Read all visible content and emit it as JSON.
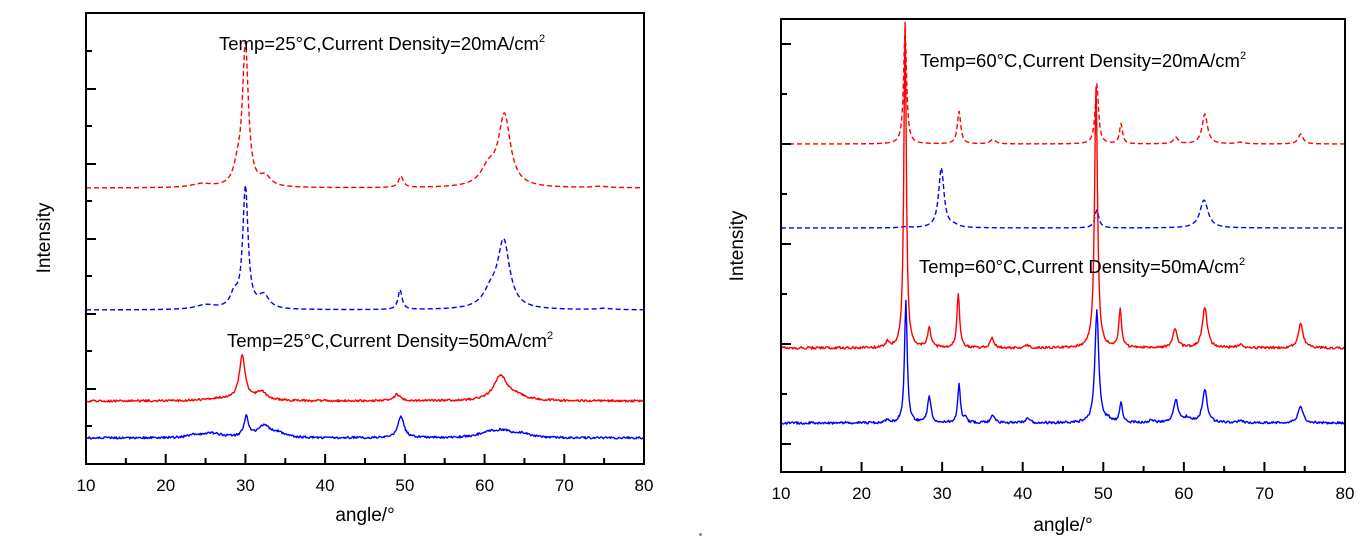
{
  "chart_data": [
    {
      "type": "line",
      "panel": "left",
      "xlabel": "angle/°",
      "ylabel": "Intensity",
      "xlim": [
        10,
        80
      ],
      "xticks": [
        "10",
        "20",
        "30",
        "40",
        "50",
        "60",
        "70",
        "80"
      ],
      "annotations": [
        {
          "text": "Temp=25°C,Current Density=20mA/cm",
          "sup": "2"
        },
        {
          "text": "Temp=25°C,Current Density=50mA/cm",
          "sup": "2"
        }
      ],
      "yticks_major": 5,
      "series": [
        {
          "name": "25°C 20mA/cm2 (red dashed)",
          "color": "#ff0000",
          "dash": true,
          "baseline": 0.61,
          "peaks": [
            [
              30.0,
              3.2,
              0.45
            ],
            [
              62.5,
              1.6,
              0.9
            ],
            [
              49.5,
              0.26,
              0.35
            ],
            [
              32.5,
              0.22,
              0.8
            ],
            [
              29.0,
              0.35,
              0.6
            ],
            [
              24.5,
              0.08,
              1.5
            ],
            [
              60.5,
              0.4,
              1.2
            ],
            [
              74.5,
              0.03,
              1.0
            ]
          ]
        },
        {
          "name": "25°C 20mA/cm2 (blue dashed)",
          "color": "#0000ff",
          "dash": true,
          "baseline": 0.0,
          "peaks": [
            [
              30.0,
              2.75,
              0.4
            ],
            [
              62.4,
              1.5,
              0.9
            ],
            [
              49.4,
              0.45,
              0.3
            ],
            [
              32.3,
              0.3,
              0.8
            ],
            [
              28.6,
              0.3,
              0.6
            ],
            [
              25.0,
              0.1,
              1.5
            ],
            [
              60.8,
              0.35,
              1.2
            ],
            [
              75.0,
              0.03,
              1.0
            ]
          ]
        },
        {
          "name": "25°C 50mA/cm2 (red solid)",
          "color": "#ff0000",
          "dash": false,
          "baseline": 0.0,
          "peaks": [
            [
              29.6,
              1.0,
              0.45
            ],
            [
              32.0,
              0.2,
              0.8
            ],
            [
              62.0,
              0.55,
              1.0
            ],
            [
              49.0,
              0.14,
              0.5
            ],
            [
              27.0,
              0.06,
              2.0
            ],
            [
              64.0,
              0.1,
              1.5
            ]
          ]
        },
        {
          "name": "25°C 50mA/cm2 (blue solid)",
          "color": "#0000ff",
          "dash": false,
          "baseline": 0.0,
          "peaks": [
            [
              30.1,
              0.45,
              0.35
            ],
            [
              32.3,
              0.27,
              0.9
            ],
            [
              49.5,
              0.5,
              0.45
            ],
            [
              34.0,
              0.1,
              1.0
            ],
            [
              25.8,
              0.1,
              1.5
            ],
            [
              62.3,
              0.14,
              1.5
            ],
            [
              60.5,
              0.1,
              1.5
            ],
            [
              64.8,
              0.08,
              1.0
            ],
            [
              23.5,
              0.05,
              0.8
            ]
          ]
        }
      ]
    },
    {
      "type": "line",
      "panel": "right",
      "xlabel": "angle/°",
      "ylabel": "Intensity",
      "xlim": [
        10,
        80
      ],
      "xticks": [
        "10",
        "20",
        "30",
        "40",
        "50",
        "60",
        "70",
        "80"
      ],
      "annotations": [
        {
          "text": "Temp=60°C,Current Density=20mA/cm",
          "sup": "2"
        },
        {
          "text": "Temp=60°C,Current Density=50mA/cm",
          "sup": "2"
        }
      ],
      "yticks_major": 9,
      "series": [
        {
          "name": "60°C 20mA/cm2 (red dashed)",
          "color": "#ff0000",
          "dash": true,
          "baseline": 0.0,
          "peaks": [
            [
              25.4,
              2.3,
              0.22
            ],
            [
              32.1,
              0.65,
              0.25
            ],
            [
              36.3,
              0.09,
              0.4
            ],
            [
              49.2,
              1.2,
              0.25
            ],
            [
              52.2,
              0.4,
              0.22
            ],
            [
              59.0,
              0.13,
              0.35
            ],
            [
              62.6,
              0.6,
              0.4
            ],
            [
              67.0,
              0.03,
              0.6
            ],
            [
              74.5,
              0.2,
              0.35
            ]
          ]
        },
        {
          "name": "60°C 20mA/cm2 (blue dashed)",
          "color": "#0000ff",
          "dash": true,
          "baseline": 0.0,
          "peaks": [
            [
              29.9,
              1.2,
              0.4
            ],
            [
              49.2,
              0.36,
              0.3
            ],
            [
              62.5,
              0.56,
              0.6
            ],
            [
              25.5,
              0.02,
              0.6
            ],
            [
              31.5,
              0.04,
              0.6
            ]
          ]
        },
        {
          "name": "60°C 50mA/cm2 (red solid)",
          "color": "#ff0000",
          "dash": false,
          "baseline": 0.0,
          "peaks": [
            [
              25.4,
              6.5,
              0.18
            ],
            [
              23.2,
              0.13,
              0.2
            ],
            [
              28.4,
              0.38,
              0.25
            ],
            [
              32.0,
              1.1,
              0.2
            ],
            [
              36.2,
              0.22,
              0.25
            ],
            [
              40.6,
              0.05,
              0.3
            ],
            [
              49.1,
              5.2,
              0.22
            ],
            [
              52.1,
              0.78,
              0.2
            ],
            [
              58.9,
              0.36,
              0.35
            ],
            [
              62.6,
              0.82,
              0.35
            ],
            [
              67.0,
              0.07,
              0.4
            ],
            [
              74.5,
              0.5,
              0.35
            ]
          ]
        },
        {
          "name": "60°C 50mA/cm2 (blue solid)",
          "color": "#0000ff",
          "dash": false,
          "baseline": 0.0,
          "peaks": [
            [
              25.5,
              2.45,
              0.2
            ],
            [
              23.2,
              0.05,
              0.25
            ],
            [
              28.4,
              0.53,
              0.25
            ],
            [
              32.1,
              0.78,
              0.2
            ],
            [
              32.9,
              0.1,
              0.2
            ],
            [
              36.3,
              0.14,
              0.3
            ],
            [
              40.6,
              0.1,
              0.3
            ],
            [
              49.2,
              2.27,
              0.28
            ],
            [
              50.6,
              0.06,
              0.3
            ],
            [
              52.2,
              0.4,
              0.2
            ],
            [
              56.0,
              0.05,
              0.35
            ],
            [
              59.0,
              0.45,
              0.35
            ],
            [
              60.5,
              0.1,
              0.6
            ],
            [
              62.6,
              0.66,
              0.35
            ],
            [
              67.0,
              0.05,
              0.4
            ],
            [
              74.5,
              0.35,
              0.35
            ]
          ]
        }
      ]
    }
  ]
}
